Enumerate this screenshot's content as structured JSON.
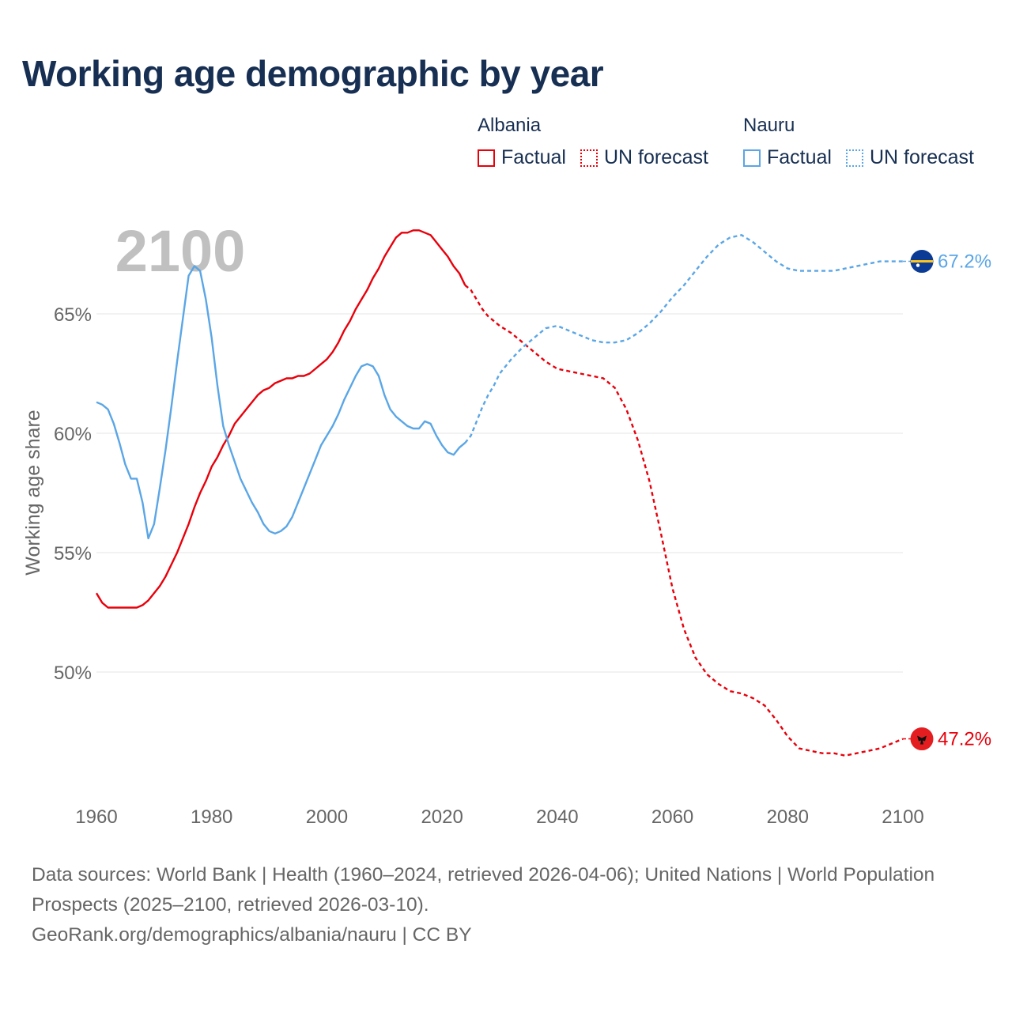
{
  "title": "Working age demographic by year",
  "legend": {
    "groups": [
      {
        "name": "Albania",
        "factual": "Factual",
        "forecast": "UN forecast",
        "color": "#e8000b"
      },
      {
        "name": "Nauru",
        "factual": "Factual",
        "forecast": "UN forecast",
        "color": "#5aa6e6"
      }
    ]
  },
  "year_watermark": "2100",
  "footer": {
    "sources": "Data sources: World Bank | Health (1960–2024, retrieved 2026-04-06); United Nations | World Population Prospects (2025–2100, retrieved 2026-03-10).",
    "credit": "GeoRank.org/demographics/albania/nauru | CC BY"
  },
  "chart_data": {
    "type": "line",
    "title": "Working age demographic by year",
    "xlabel": "",
    "ylabel": "Working age share",
    "xlim": [
      1960,
      2100
    ],
    "ylim": [
      45.5,
      69.5
    ],
    "x_ticks": [
      1960,
      1980,
      2000,
      2020,
      2040,
      2060,
      2080,
      2100
    ],
    "x_tick_labels": [
      "1960",
      "1980",
      "2000",
      "2020",
      "2040",
      "2060",
      "2080",
      "2100"
    ],
    "y_ticks": [
      50,
      55,
      60,
      65
    ],
    "y_tick_labels": [
      "50%",
      "55%",
      "60%",
      "65%"
    ],
    "grid": true,
    "series": [
      {
        "name": "Albania",
        "color": "#e8000b",
        "end_label": "47.2%",
        "factual": {
          "x": [
            1960,
            1961,
            1962,
            1963,
            1964,
            1965,
            1966,
            1967,
            1968,
            1969,
            1970,
            1971,
            1972,
            1973,
            1974,
            1975,
            1976,
            1977,
            1978,
            1979,
            1980,
            1981,
            1982,
            1983,
            1984,
            1985,
            1986,
            1987,
            1988,
            1989,
            1990,
            1991,
            1992,
            1993,
            1994,
            1995,
            1996,
            1997,
            1998,
            1999,
            2000,
            2001,
            2002,
            2003,
            2004,
            2005,
            2006,
            2007,
            2008,
            2009,
            2010,
            2011,
            2012,
            2013,
            2014,
            2015,
            2016,
            2017,
            2018,
            2019,
            2020,
            2021,
            2022,
            2023,
            2024
          ],
          "y": [
            53.3,
            52.9,
            52.7,
            52.7,
            52.7,
            52.7,
            52.7,
            52.7,
            52.8,
            53.0,
            53.3,
            53.6,
            54.0,
            54.5,
            55.0,
            55.6,
            56.2,
            56.9,
            57.5,
            58.0,
            58.6,
            59.0,
            59.5,
            59.9,
            60.4,
            60.7,
            61.0,
            61.3,
            61.6,
            61.8,
            61.9,
            62.1,
            62.2,
            62.3,
            62.3,
            62.4,
            62.4,
            62.5,
            62.7,
            62.9,
            63.1,
            63.4,
            63.8,
            64.3,
            64.7,
            65.2,
            65.6,
            66.0,
            66.5,
            66.9,
            67.4,
            67.8,
            68.2,
            68.4,
            68.4,
            68.5,
            68.5,
            68.4,
            68.3,
            68.0,
            67.7,
            67.4,
            67.0,
            66.7,
            66.2
          ]
        },
        "forecast": {
          "x": [
            2024,
            2025,
            2026,
            2027,
            2028,
            2029,
            2030,
            2032,
            2034,
            2036,
            2038,
            2040,
            2042,
            2044,
            2046,
            2048,
            2050,
            2052,
            2054,
            2056,
            2058,
            2060,
            2062,
            2064,
            2066,
            2068,
            2070,
            2072,
            2074,
            2076,
            2078,
            2080,
            2082,
            2084,
            2086,
            2088,
            2090,
            2092,
            2094,
            2096,
            2098,
            2100
          ],
          "y": [
            66.2,
            66.0,
            65.6,
            65.2,
            64.9,
            64.7,
            64.5,
            64.2,
            63.8,
            63.4,
            63.0,
            62.7,
            62.6,
            62.5,
            62.4,
            62.3,
            61.9,
            61.0,
            59.7,
            58.0,
            55.8,
            53.5,
            51.8,
            50.6,
            49.9,
            49.5,
            49.2,
            49.1,
            48.9,
            48.6,
            48.0,
            47.3,
            46.8,
            46.7,
            46.6,
            46.6,
            46.5,
            46.6,
            46.7,
            46.8,
            47.0,
            47.2
          ]
        }
      },
      {
        "name": "Nauru",
        "color": "#5aa6e6",
        "end_label": "67.2%",
        "factual": {
          "x": [
            1960,
            1961,
            1962,
            1963,
            1964,
            1965,
            1966,
            1967,
            1968,
            1969,
            1970,
            1971,
            1972,
            1973,
            1974,
            1975,
            1976,
            1977,
            1978,
            1979,
            1980,
            1981,
            1982,
            1983,
            1984,
            1985,
            1986,
            1987,
            1988,
            1989,
            1990,
            1991,
            1992,
            1993,
            1994,
            1995,
            1996,
            1997,
            1998,
            1999,
            2000,
            2001,
            2002,
            2003,
            2004,
            2005,
            2006,
            2007,
            2008,
            2009,
            2010,
            2011,
            2012,
            2013,
            2014,
            2015,
            2016,
            2017,
            2018,
            2019,
            2020,
            2021,
            2022,
            2023,
            2024
          ],
          "y": [
            61.3,
            61.2,
            61.0,
            60.4,
            59.6,
            58.7,
            58.1,
            58.1,
            57.1,
            55.6,
            56.2,
            57.7,
            59.3,
            61.1,
            63.0,
            64.8,
            66.6,
            67.0,
            66.8,
            65.6,
            64.0,
            62.0,
            60.3,
            59.5,
            58.8,
            58.1,
            57.6,
            57.1,
            56.7,
            56.2,
            55.9,
            55.8,
            55.9,
            56.1,
            56.5,
            57.1,
            57.7,
            58.3,
            58.9,
            59.5,
            59.9,
            60.3,
            60.8,
            61.4,
            61.9,
            62.4,
            62.8,
            62.9,
            62.8,
            62.4,
            61.6,
            61.0,
            60.7,
            60.5,
            60.3,
            60.2,
            60.2,
            60.5,
            60.4,
            59.9,
            59.5,
            59.2,
            59.1,
            59.4,
            59.6
          ]
        },
        "forecast": {
          "x": [
            2024,
            2025,
            2026,
            2027,
            2028,
            2029,
            2030,
            2032,
            2034,
            2036,
            2038,
            2040,
            2042,
            2044,
            2046,
            2048,
            2050,
            2052,
            2054,
            2056,
            2058,
            2060,
            2062,
            2064,
            2066,
            2068,
            2070,
            2072,
            2074,
            2076,
            2078,
            2080,
            2082,
            2084,
            2086,
            2088,
            2090,
            2092,
            2094,
            2096,
            2098,
            2100
          ],
          "y": [
            59.6,
            59.9,
            60.5,
            61.1,
            61.6,
            62.0,
            62.5,
            63.1,
            63.6,
            64.0,
            64.4,
            64.5,
            64.3,
            64.1,
            63.9,
            63.8,
            63.8,
            63.9,
            64.2,
            64.6,
            65.1,
            65.7,
            66.2,
            66.8,
            67.4,
            67.9,
            68.2,
            68.3,
            68.0,
            67.6,
            67.2,
            66.9,
            66.8,
            66.8,
            66.8,
            66.8,
            66.9,
            67.0,
            67.1,
            67.2,
            67.2,
            67.2
          ]
        }
      }
    ]
  }
}
